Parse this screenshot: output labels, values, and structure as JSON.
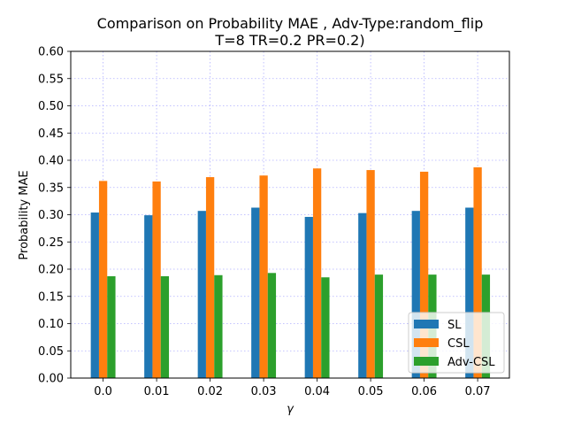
{
  "chart_data": {
    "type": "bar",
    "title": "Comparison on Probability MAE , Adv-Type:random_flip",
    "subtitle": "T=8 TR=0.2 PR=0.2)",
    "xlabel": "γ",
    "ylabel": "Probability MAE",
    "categories": [
      "0.0",
      "0.01",
      "0.02",
      "0.03",
      "0.04",
      "0.05",
      "0.06",
      "0.07"
    ],
    "yticks": [
      "0.00",
      "0.05",
      "0.10",
      "0.15",
      "0.20",
      "0.25",
      "0.30",
      "0.35",
      "0.40",
      "0.45",
      "0.50",
      "0.55",
      "0.60"
    ],
    "ylim": [
      0,
      0.6
    ],
    "grid": true,
    "legend_position": "bottom-right",
    "series": [
      {
        "name": "SL",
        "color": "#1f77b4",
        "values": [
          0.304,
          0.299,
          0.307,
          0.313,
          0.296,
          0.303,
          0.307,
          0.313
        ]
      },
      {
        "name": "CSL",
        "color": "#ff7f0e",
        "values": [
          0.362,
          0.361,
          0.369,
          0.372,
          0.385,
          0.382,
          0.379,
          0.387
        ]
      },
      {
        "name": "Adv-CSL",
        "color": "#2ca02c",
        "values": [
          0.187,
          0.187,
          0.189,
          0.193,
          0.185,
          0.19,
          0.19,
          0.19
        ]
      }
    ]
  }
}
